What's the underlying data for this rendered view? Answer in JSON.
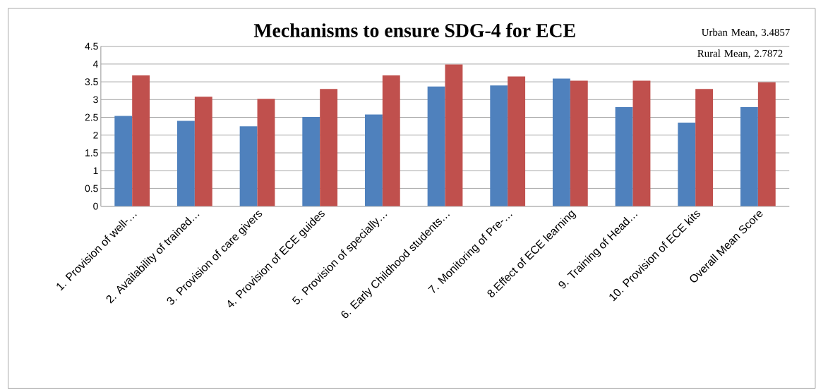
{
  "chart_data": {
    "type": "bar",
    "title": "Mechanisms to ensure SDG-4 for ECE",
    "categories": [
      "1. Provision of well-…",
      "2. Availability of trained…",
      "3. Provision of care givers",
      "4. Provision of ECE guides",
      "5. Provision of specially…",
      "6. Early Childhood students…",
      "7. Monitoring of Pre-…",
      "8.Effect of ECE learning",
      "9. Training of Head…",
      "10. Provision of ECE kits",
      "Overall Mean Score"
    ],
    "series": [
      {
        "color": "#4f81bd",
        "values": [
          2.54,
          2.4,
          2.25,
          2.51,
          2.58,
          3.37,
          3.4,
          3.59,
          2.79,
          2.35,
          2.7872
        ]
      },
      {
        "color": "#c0504d",
        "values": [
          3.68,
          3.08,
          3.02,
          3.3,
          3.68,
          3.99,
          3.65,
          3.53,
          3.53,
          3.3,
          3.4857
        ]
      }
    ],
    "annotations": [
      "Urban Mean, 3.4857",
      "Rural Mean, 2.7872"
    ],
    "ylim": [
      0,
      4.5
    ],
    "yticks": [
      0,
      0.5,
      1,
      1.5,
      2,
      2.5,
      3,
      3.5,
      4,
      4.5
    ],
    "grid": "y"
  }
}
